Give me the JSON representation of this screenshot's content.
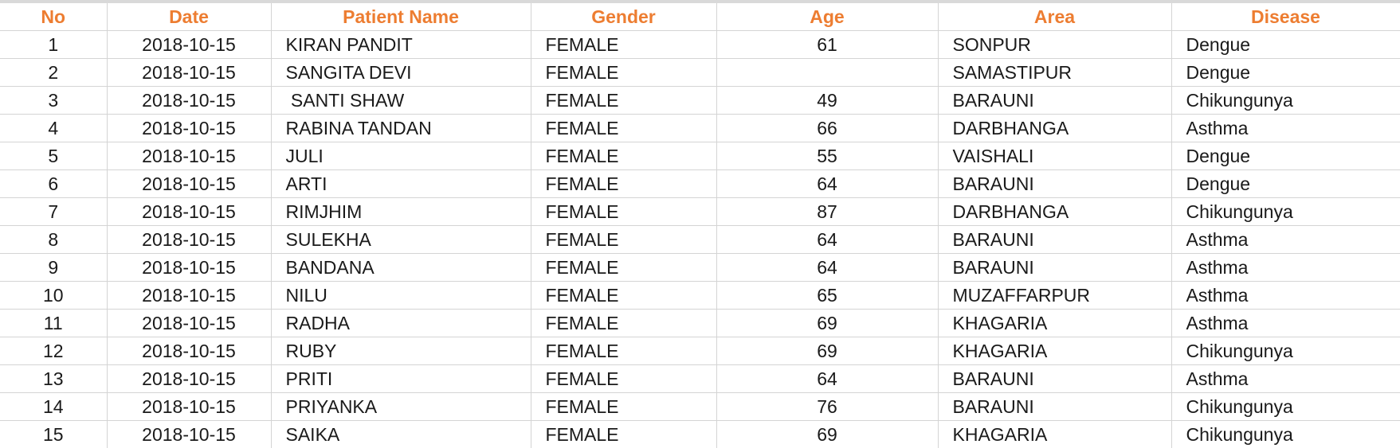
{
  "sheet": {
    "accent_color": "#ed7d31",
    "headers": {
      "no": "No",
      "date": "Date",
      "name": "Patient Name",
      "gender": "Gender",
      "age": "Age",
      "area": "Area",
      "disease": "Disease"
    },
    "rows": [
      {
        "no": "1",
        "date": "2018-10-15",
        "name": "KIRAN PANDIT",
        "gender": "FEMALE",
        "age": "61",
        "area": "SONPUR",
        "disease": "Dengue"
      },
      {
        "no": "2",
        "date": "2018-10-15",
        "name": "SANGITA DEVI",
        "gender": "FEMALE",
        "age": "",
        "area": "SAMASTIPUR",
        "disease": "Dengue"
      },
      {
        "no": "3",
        "date": "2018-10-15",
        "name": " SANTI SHAW",
        "gender": "FEMALE",
        "age": "49",
        "area": "BARAUNI",
        "disease": "Chikungunya"
      },
      {
        "no": "4",
        "date": "2018-10-15",
        "name": "RABINA TANDAN",
        "gender": "FEMALE",
        "age": "66",
        "area": "DARBHANGA",
        "disease": "Asthma"
      },
      {
        "no": "5",
        "date": "2018-10-15",
        "name": "JULI",
        "gender": "FEMALE",
        "age": "55",
        "area": "VAISHALI",
        "disease": "Dengue"
      },
      {
        "no": "6",
        "date": "2018-10-15",
        "name": "ARTI",
        "gender": "FEMALE",
        "age": "64",
        "area": "BARAUNI",
        "disease": "Dengue"
      },
      {
        "no": "7",
        "date": "2018-10-15",
        "name": "RIMJHIM",
        "gender": "FEMALE",
        "age": "87",
        "area": "DARBHANGA",
        "disease": "Chikungunya"
      },
      {
        "no": "8",
        "date": "2018-10-15",
        "name": "SULEKHA",
        "gender": "FEMALE",
        "age": "64",
        "area": "BARAUNI",
        "disease": "Asthma"
      },
      {
        "no": "9",
        "date": "2018-10-15",
        "name": "BANDANA",
        "gender": "FEMALE",
        "age": "64",
        "area": "BARAUNI",
        "disease": "Asthma"
      },
      {
        "no": "10",
        "date": "2018-10-15",
        "name": "NILU",
        "gender": "FEMALE",
        "age": "65",
        "area": "MUZAFFARPUR",
        "disease": "Asthma"
      },
      {
        "no": "11",
        "date": "2018-10-15",
        "name": "RADHA",
        "gender": "FEMALE",
        "age": "69",
        "area": "KHAGARIA",
        "disease": "Asthma"
      },
      {
        "no": "12",
        "date": "2018-10-15",
        "name": "RUBY",
        "gender": "FEMALE",
        "age": "69",
        "area": "KHAGARIA",
        "disease": "Chikungunya"
      },
      {
        "no": "13",
        "date": "2018-10-15",
        "name": "PRITI",
        "gender": "FEMALE",
        "age": "64",
        "area": "BARAUNI",
        "disease": "Asthma"
      },
      {
        "no": "14",
        "date": "2018-10-15",
        "name": "PRIYANKA",
        "gender": "FEMALE",
        "age": "76",
        "area": "BARAUNI",
        "disease": "Chikungunya"
      },
      {
        "no": "15",
        "date": "2018-10-15",
        "name": "SAIKA",
        "gender": "FEMALE",
        "age": "69",
        "area": "KHAGARIA",
        "disease": "Chikungunya"
      }
    ]
  }
}
